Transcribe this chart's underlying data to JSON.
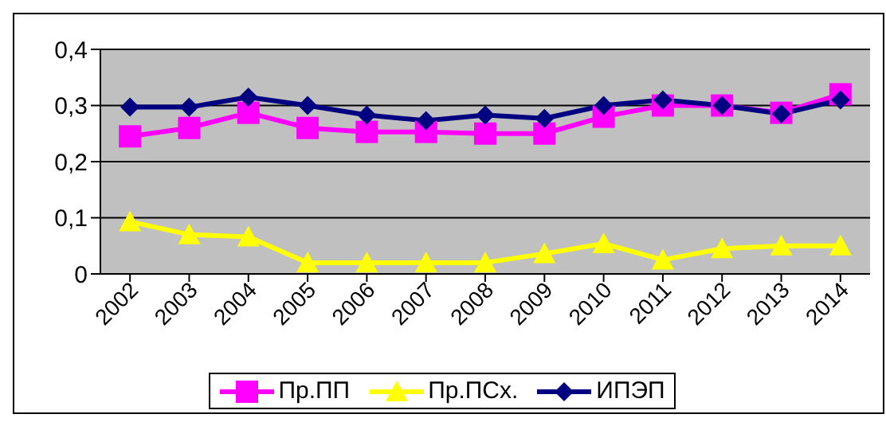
{
  "chart_data": {
    "type": "line",
    "categories": [
      "2002",
      "2003",
      "2004",
      "2005",
      "2006",
      "2007",
      "2008",
      "2009",
      "2010",
      "2011",
      "2012",
      "2013",
      "2014"
    ],
    "series": [
      {
        "name": "Пр.ПП",
        "color": "#ff00ff",
        "marker": "square",
        "values": [
          0.245,
          0.26,
          0.287,
          0.26,
          0.253,
          0.253,
          0.25,
          0.25,
          0.28,
          0.3,
          0.3,
          0.287,
          0.32
        ]
      },
      {
        "name": "Пр.ПСх.",
        "color": "#ffff00",
        "marker": "triangle",
        "values": [
          0.093,
          0.07,
          0.066,
          0.02,
          0.02,
          0.02,
          0.02,
          0.036,
          0.054,
          0.025,
          0.045,
          0.05,
          0.05
        ]
      },
      {
        "name": "ИПЭП",
        "color": "#000080",
        "marker": "diamond",
        "values": [
          0.297,
          0.297,
          0.315,
          0.3,
          0.283,
          0.273,
          0.283,
          0.277,
          0.3,
          0.31,
          0.3,
          0.285,
          0.31
        ]
      }
    ],
    "ylim": [
      0,
      0.4
    ],
    "yticks": [
      {
        "value": 0,
        "label": "0"
      },
      {
        "value": 0.1,
        "label": "0,1"
      },
      {
        "value": 0.2,
        "label": "0,2"
      },
      {
        "value": 0.3,
        "label": "0,3"
      },
      {
        "value": 0.4,
        "label": "0,4"
      }
    ],
    "grid": "y",
    "legend": "bottom"
  }
}
